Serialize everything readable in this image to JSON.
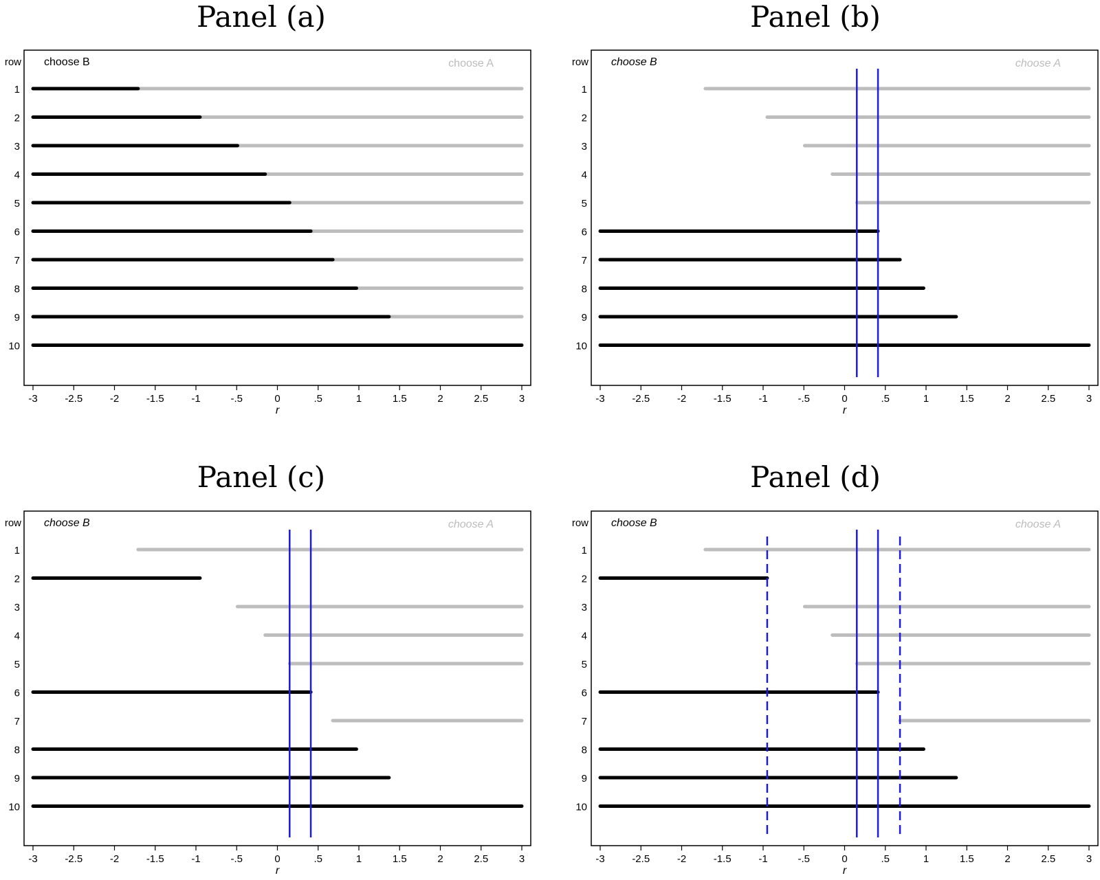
{
  "colors": {
    "choose_b": "#000000",
    "choose_a": "#bdbdbd",
    "cutoff": "#1c1cdc"
  },
  "chart_data": [
    {
      "type": "line",
      "title": "Panel (a)",
      "xlabel": "r",
      "ylabel": "row",
      "xlim": [
        -3,
        3
      ],
      "xticks": [
        "-3",
        "-2.5",
        "-2",
        "-1.5",
        "-1",
        "-.5",
        "0",
        ".5",
        "1",
        "1.5",
        "2",
        "2.5",
        "3"
      ],
      "legend": {
        "choose_b": "choose B",
        "choose_a": "choose A",
        "italic": false
      },
      "rows": [
        {
          "row": "1",
          "b": [
            -3,
            -1.71
          ],
          "a": [
            -1.71,
            3
          ]
        },
        {
          "row": "2",
          "b": [
            -3,
            -0.95
          ],
          "a": [
            -0.95,
            3
          ]
        },
        {
          "row": "3",
          "b": [
            -3,
            -0.49
          ],
          "a": [
            -0.49,
            3
          ]
        },
        {
          "row": "4",
          "b": [
            -3,
            -0.15
          ],
          "a": [
            -0.15,
            3
          ]
        },
        {
          "row": "5",
          "b": [
            -3,
            0.15
          ],
          "a": [
            0.15,
            3
          ]
        },
        {
          "row": "6",
          "b": [
            -3,
            0.41
          ],
          "a": [
            0.41,
            3
          ]
        },
        {
          "row": "7",
          "b": [
            -3,
            0.68
          ],
          "a": [
            0.68,
            3
          ]
        },
        {
          "row": "8",
          "b": [
            -3,
            0.97
          ],
          "a": [
            0.97,
            3
          ]
        },
        {
          "row": "9",
          "b": [
            -3,
            1.37
          ],
          "a": [
            1.37,
            3
          ]
        },
        {
          "row": "10",
          "b": [
            -3,
            3
          ],
          "a": null
        }
      ],
      "solid_lines": [],
      "dashed_lines": []
    },
    {
      "type": "line",
      "title": "Panel (b)",
      "xlabel": "r",
      "ylabel": "row",
      "xlim": [
        -3,
        3
      ],
      "xticks": [
        "-3",
        "-2.5",
        "-2",
        "-1.5",
        "-1",
        "-.5",
        "0",
        ".5",
        "1",
        "1.5",
        "2",
        "2.5",
        "3"
      ],
      "legend": {
        "choose_b": "choose B",
        "choose_a": "choose A",
        "italic": true
      },
      "rows": [
        {
          "row": "1",
          "b": null,
          "a": [
            -1.71,
            3
          ]
        },
        {
          "row": "2",
          "b": null,
          "a": [
            -0.95,
            3
          ]
        },
        {
          "row": "3",
          "b": null,
          "a": [
            -0.49,
            3
          ]
        },
        {
          "row": "4",
          "b": null,
          "a": [
            -0.15,
            3
          ]
        },
        {
          "row": "5",
          "b": null,
          "a": [
            0.15,
            3
          ]
        },
        {
          "row": "6",
          "b": [
            -3,
            0.41
          ],
          "a": null
        },
        {
          "row": "7",
          "b": [
            -3,
            0.68
          ],
          "a": null
        },
        {
          "row": "8",
          "b": [
            -3,
            0.97
          ],
          "a": null
        },
        {
          "row": "9",
          "b": [
            -3,
            1.37
          ],
          "a": null
        },
        {
          "row": "10",
          "b": [
            -3,
            3
          ],
          "a": null
        }
      ],
      "solid_lines": [
        0.15,
        0.41
      ],
      "dashed_lines": []
    },
    {
      "type": "line",
      "title": "Panel (c)",
      "xlabel": "r",
      "ylabel": "row",
      "xlim": [
        -3,
        3
      ],
      "xticks": [
        "-3",
        "-2.5",
        "-2",
        "-1.5",
        "-1",
        "-.5",
        "0",
        ".5",
        "1",
        "1.5",
        "2",
        "2.5",
        "3"
      ],
      "legend": {
        "choose_b": "choose B",
        "choose_a": "choose A",
        "italic": true
      },
      "rows": [
        {
          "row": "1",
          "b": null,
          "a": [
            -1.71,
            3
          ]
        },
        {
          "row": "2",
          "b": [
            -3,
            -0.95
          ],
          "a": null
        },
        {
          "row": "3",
          "b": null,
          "a": [
            -0.49,
            3
          ]
        },
        {
          "row": "4",
          "b": null,
          "a": [
            -0.15,
            3
          ]
        },
        {
          "row": "5",
          "b": null,
          "a": [
            0.15,
            3
          ]
        },
        {
          "row": "6",
          "b": [
            -3,
            0.41
          ],
          "a": null
        },
        {
          "row": "7",
          "b": null,
          "a": [
            0.68,
            3
          ]
        },
        {
          "row": "8",
          "b": [
            -3,
            0.97
          ],
          "a": null
        },
        {
          "row": "9",
          "b": [
            -3,
            1.37
          ],
          "a": null
        },
        {
          "row": "10",
          "b": [
            -3,
            3
          ],
          "a": null
        }
      ],
      "solid_lines": [
        0.15,
        0.41
      ],
      "dashed_lines": []
    },
    {
      "type": "line",
      "title": "Panel (d)",
      "xlabel": "r",
      "ylabel": "row",
      "xlim": [
        -3,
        3
      ],
      "xticks": [
        "-3",
        "-2.5",
        "-2",
        "-1.5",
        "-1",
        "-.5",
        "0",
        ".5",
        "1",
        "1.5",
        "2",
        "2.5",
        "3"
      ],
      "legend": {
        "choose_b": "choose B",
        "choose_a": "choose A",
        "italic": true
      },
      "rows": [
        {
          "row": "1",
          "b": null,
          "a": [
            -1.71,
            3
          ]
        },
        {
          "row": "2",
          "b": [
            -3,
            -0.95
          ],
          "a": null
        },
        {
          "row": "3",
          "b": null,
          "a": [
            -0.49,
            3
          ]
        },
        {
          "row": "4",
          "b": null,
          "a": [
            -0.15,
            3
          ]
        },
        {
          "row": "5",
          "b": null,
          "a": [
            0.15,
            3
          ]
        },
        {
          "row": "6",
          "b": [
            -3,
            0.41
          ],
          "a": null
        },
        {
          "row": "7",
          "b": null,
          "a": [
            0.68,
            3
          ]
        },
        {
          "row": "8",
          "b": [
            -3,
            0.97
          ],
          "a": null
        },
        {
          "row": "9",
          "b": [
            -3,
            1.37
          ],
          "a": null
        },
        {
          "row": "10",
          "b": [
            -3,
            3
          ],
          "a": null
        }
      ],
      "solid_lines": [
        0.15,
        0.41
      ],
      "dashed_lines": [
        -0.95,
        0.68
      ]
    }
  ]
}
